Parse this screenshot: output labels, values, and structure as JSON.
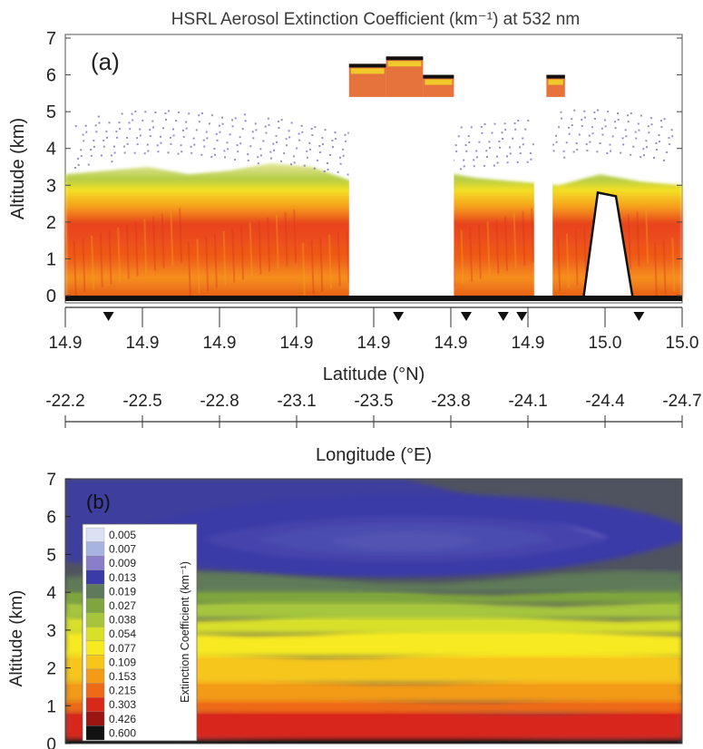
{
  "title": "HSRL Aerosol Extinction Coefficient (km⁻¹) at 532 nm",
  "chart_data": [
    {
      "type": "heatmap",
      "panel_label": "(a)",
      "ylabel": "Altitude (km)",
      "ylim": [
        0,
        7
      ],
      "yticks": [
        "0",
        "1",
        "2",
        "3",
        "4",
        "5",
        "6",
        "7"
      ],
      "xlabel": "Latitude (°N)",
      "xticks": [
        "14.9",
        "14.9",
        "14.9",
        "14.9",
        "14.9",
        "14.9",
        "14.9",
        "15.0",
        "15.0"
      ],
      "x2label": "Longitude (°E)",
      "x2ticks": [
        "-22.2",
        "-22.5",
        "-22.8",
        "-23.1",
        "-23.5",
        "-23.8",
        "-24.1",
        "-24.4",
        "-24.7"
      ],
      "markers_tick_fraction": [
        0.07,
        0.54,
        0.65,
        0.71,
        0.74,
        0.93
      ],
      "layer_tops_km": [
        3.3,
        3.4,
        3.5,
        3.3,
        3.4,
        3.6,
        3.5,
        3.1,
        3.3,
        3.4,
        3.2,
        3.1,
        3.0,
        3.3,
        3.1,
        3.0
      ],
      "cloud_gap_fraction_ranges": [
        [
          0.46,
          0.63
        ],
        [
          0.76,
          0.79
        ]
      ],
      "elevated_cloud_tops_km": [
        6.3,
        6.5,
        6.0,
        6.7
      ],
      "terrain_peak_km": 2.8
    },
    {
      "type": "heatmap",
      "panel_label": "(b)",
      "ylabel": "Altitude (km)",
      "ylim": [
        0,
        7
      ],
      "yticks": [
        "0",
        "1",
        "2",
        "3",
        "4",
        "5",
        "6",
        "7"
      ],
      "colorbar_label": "Extinction Coefficient (km⁻¹)",
      "colorbar_levels": [
        "0.005",
        "0.007",
        "0.009",
        "0.013",
        "0.019",
        "0.027",
        "0.038",
        "0.054",
        "0.077",
        "0.109",
        "0.153",
        "0.215",
        "0.303",
        "0.426",
        "0.600"
      ],
      "colorbar_colors": [
        "#d9e1f2",
        "#a7b4e0",
        "#8a7dc9",
        "#3a3aa8",
        "#5f7a59",
        "#7ea53e",
        "#a5c63c",
        "#d8e02a",
        "#f7ea21",
        "#f7c61a",
        "#f39a16",
        "#ef6a17",
        "#d8281a",
        "#9b1512",
        "#121212"
      ],
      "level_bands_km": [
        {
          "level": "0.600",
          "from": 0.0,
          "to": 0.2
        },
        {
          "level": "0.303",
          "from": 0.2,
          "to": 0.9
        },
        {
          "level": "0.215",
          "from": 0.9,
          "to": 1.2
        },
        {
          "level": "0.153",
          "from": 1.2,
          "to": 1.7
        },
        {
          "level": "0.109",
          "from": 1.7,
          "to": 2.4
        },
        {
          "level": "0.077",
          "from": 2.4,
          "to": 3.0
        },
        {
          "level": "0.054",
          "from": 3.0,
          "to": 3.4
        },
        {
          "level": "0.038",
          "from": 3.4,
          "to": 3.8
        },
        {
          "level": "0.027",
          "from": 3.8,
          "to": 4.1
        },
        {
          "level": "0.019",
          "from": 4.1,
          "to": 4.4
        },
        {
          "level": "0.013",
          "from": 4.4,
          "to": 6.6
        },
        {
          "level": "0.009",
          "from": 4.8,
          "to": 6.0
        },
        {
          "level": "0.007",
          "from": 5.0,
          "to": 5.8
        },
        {
          "level": "0.005",
          "from": 5.1,
          "to": 5.6
        }
      ]
    }
  ],
  "colors": {
    "aerosol_red": "#e8421b",
    "aerosol_orange": "#f58f1e",
    "aerosol_yellow": "#f3e025",
    "aerosol_green": "#7fb83c",
    "scatter_purple": "#6a5cb8",
    "background_dark": "#4f5360"
  }
}
